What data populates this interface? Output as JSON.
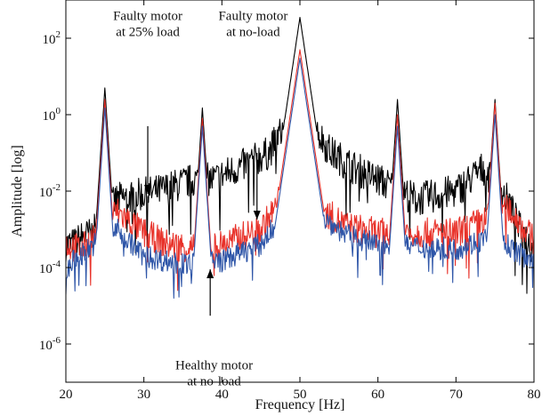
{
  "chart_data": {
    "type": "line",
    "title": "",
    "xlabel": "Frequency [Hz]",
    "ylabel": "Amplitude [log]",
    "xlim": [
      20,
      80
    ],
    "ylim": [
      1e-07,
      1000.0
    ],
    "yscale": "log",
    "grid": false,
    "legend": "none",
    "x_ticks": [
      20,
      30,
      40,
      50,
      60,
      70,
      80
    ],
    "y_ticks": [
      {
        "value": 1e-06,
        "base": "10",
        "exp": "-6"
      },
      {
        "value": 0.0001,
        "base": "10",
        "exp": "-4"
      },
      {
        "value": 0.01,
        "base": "10",
        "exp": "-2"
      },
      {
        "value": 1,
        "base": "10",
        "exp": "0"
      },
      {
        "value": 100,
        "base": "10",
        "exp": "2"
      }
    ],
    "series": [
      {
        "color": "#000000",
        "baseline": [
          [
            20,
            0.0004
          ],
          [
            21,
            0.0004
          ],
          [
            22,
            0.0006
          ],
          [
            23.5,
            0.0008
          ],
          [
            26.5,
            0.006
          ],
          [
            32,
            0.01
          ],
          [
            36.5,
            0.02
          ],
          [
            39,
            0.02
          ],
          [
            43,
            0.05
          ],
          [
            46,
            0.1
          ],
          [
            48,
            0.5
          ],
          [
            52,
            0.4
          ],
          [
            54,
            0.1
          ],
          [
            57,
            0.04
          ],
          [
            60,
            0.02
          ],
          [
            65,
            0.006
          ],
          [
            70,
            0.01
          ],
          [
            73.5,
            0.04
          ],
          [
            76.8,
            0.005
          ],
          [
            78,
            0.0012
          ],
          [
            80,
            0.0003
          ]
        ],
        "peaks": [
          [
            25,
            5
          ],
          [
            37.5,
            1.5
          ],
          [
            50,
            350
          ],
          [
            62.5,
            2.5
          ],
          [
            75,
            2.5
          ]
        ],
        "noise": 0.45
      },
      {
        "color": "#e8322a",
        "baseline": [
          [
            20,
            0.0004
          ],
          [
            22,
            0.0003
          ],
          [
            23.5,
            0.0006
          ],
          [
            26.5,
            0.003
          ],
          [
            30,
            0.0008
          ],
          [
            33,
            0.0004
          ],
          [
            38,
            0.0003
          ],
          [
            40,
            0.0004
          ],
          [
            45,
            0.001
          ],
          [
            47,
            0.004
          ],
          [
            48.5,
            0.03
          ],
          [
            51.5,
            0.03
          ],
          [
            53,
            0.003
          ],
          [
            56,
            0.0012
          ],
          [
            60,
            0.0008
          ],
          [
            70,
            0.0008
          ],
          [
            73,
            0.0015
          ],
          [
            76.8,
            0.0035
          ],
          [
            78.5,
            0.0012
          ],
          [
            80,
            0.0005
          ]
        ],
        "peaks": [
          [
            25,
            2.5
          ],
          [
            37.5,
            0.8
          ],
          [
            50,
            50
          ],
          [
            62.5,
            1
          ],
          [
            75,
            2
          ]
        ],
        "noise": 0.4
      },
      {
        "color": "#2f56a8",
        "baseline": [
          [
            20,
            8e-05
          ],
          [
            21,
            0.00015
          ],
          [
            23.5,
            0.0004
          ],
          [
            26.5,
            0.001
          ],
          [
            30,
            0.0002
          ],
          [
            35,
            0.00012
          ],
          [
            40,
            0.00015
          ],
          [
            45,
            0.0004
          ],
          [
            47.5,
            0.002
          ],
          [
            48.8,
            0.02
          ],
          [
            51.2,
            0.02
          ],
          [
            53,
            0.002
          ],
          [
            56,
            0.0007
          ],
          [
            60,
            0.0004
          ],
          [
            70,
            0.0003
          ],
          [
            74,
            0.0006
          ],
          [
            76.5,
            0.0004
          ],
          [
            78.5,
            0.0002
          ],
          [
            80,
            0.0002
          ]
        ],
        "peaks": [
          [
            25,
            1.5
          ],
          [
            37.5,
            0.5
          ],
          [
            50,
            30
          ],
          [
            62.5,
            0.5
          ],
          [
            75,
            1
          ]
        ],
        "noise": 0.3
      }
    ],
    "annotations": [
      {
        "lines": [
          "Faulty motor",
          "at 25% load"
        ],
        "text_at": [
          30.5,
          300
        ],
        "arrow_from": [
          30.5,
          0.5
        ],
        "arrow_to": [
          30.5,
          0.0085
        ]
      },
      {
        "lines": [
          "Faulty motor",
          "at no-load"
        ],
        "text_at": [
          44,
          300
        ],
        "arrow_from": [
          44.5,
          0.1
        ],
        "arrow_to": [
          44.5,
          0.0018
        ]
      },
      {
        "lines": [
          "Healthy motor",
          "at no-load"
        ],
        "text_at": [
          39,
          2.2e-07
        ],
        "arrow_from": [
          38.5,
          5.5e-06
        ],
        "arrow_to": [
          38.5,
          9e-05
        ]
      }
    ]
  }
}
